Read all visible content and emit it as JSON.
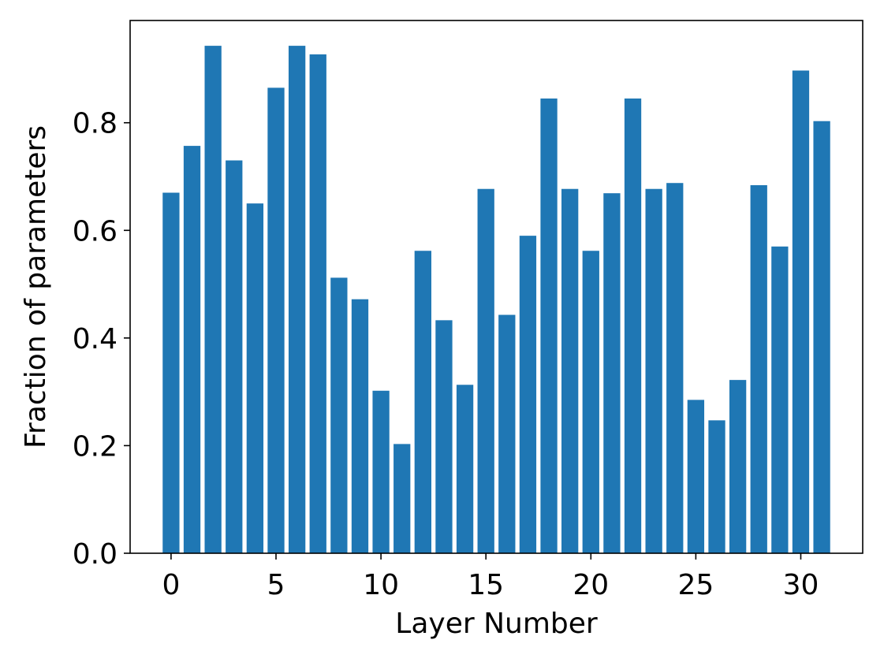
{
  "chart_data": {
    "type": "bar",
    "title": "",
    "xlabel": "Layer Number",
    "ylabel": "Fraction of parameters",
    "categories": [
      0,
      1,
      2,
      3,
      4,
      5,
      6,
      7,
      8,
      9,
      10,
      11,
      12,
      13,
      14,
      15,
      16,
      17,
      18,
      19,
      20,
      21,
      22,
      23,
      24,
      25,
      26,
      27,
      28,
      29,
      30,
      31
    ],
    "values": [
      0.67,
      0.757,
      0.943,
      0.73,
      0.65,
      0.865,
      0.943,
      0.927,
      0.512,
      0.472,
      0.302,
      0.203,
      0.562,
      0.433,
      0.313,
      0.677,
      0.443,
      0.59,
      0.845,
      0.677,
      0.562,
      0.669,
      0.845,
      0.677,
      0.688,
      0.285,
      0.247,
      0.322,
      0.684,
      0.57,
      0.897,
      0.803
    ],
    "xticks": [
      0,
      5,
      10,
      15,
      20,
      25,
      30
    ],
    "xtick_labels": [
      "0",
      "5",
      "10",
      "15",
      "20",
      "25",
      "30"
    ],
    "yticks": [
      0.0,
      0.2,
      0.4,
      0.6,
      0.8
    ],
    "ytick_labels": [
      "0.0",
      "0.2",
      "0.4",
      "0.6",
      "0.8"
    ],
    "xlim": [
      -1.95,
      32.95
    ],
    "ylim": [
      0,
      0.99
    ],
    "bar_color": "#1f77b4",
    "grid": false,
    "legend": "none"
  }
}
